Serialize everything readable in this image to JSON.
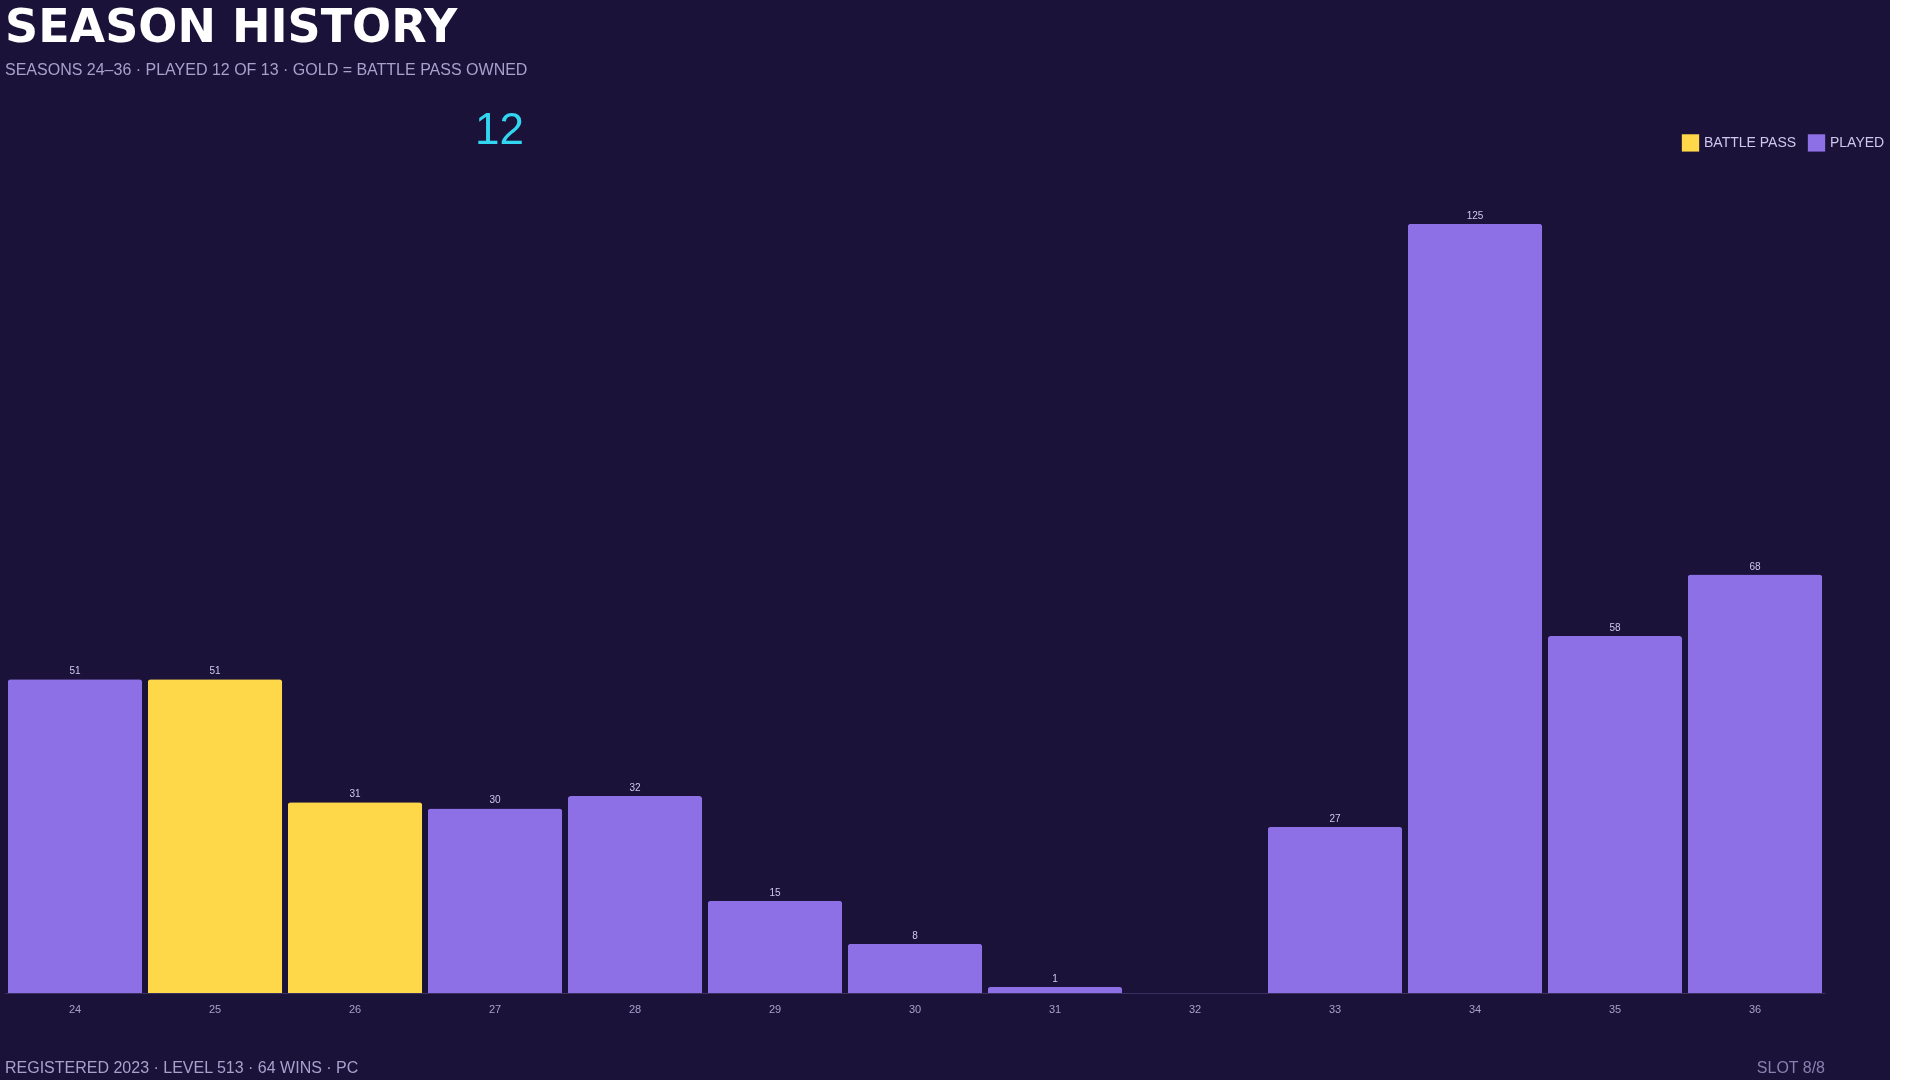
{
  "chart_data": {
    "type": "bar",
    "title": "SEASON HISTORY",
    "subtitle": "SEASONS 24–36 · PLAYED 12 OF 13 · GOLD = BATTLE PASS OWNED",
    "categories": [
      "24",
      "25",
      "26",
      "27",
      "28",
      "29",
      "30",
      "31",
      "32",
      "33",
      "34",
      "35",
      "36"
    ],
    "series": [
      {
        "name": "BATTLE PASS",
        "color": "#ffd84a",
        "values": [
          null,
          51,
          31,
          null,
          null,
          null,
          null,
          null,
          null,
          null,
          null,
          null,
          null
        ]
      },
      {
        "name": "PLAYED",
        "color": "#8e70e6",
        "values": [
          51,
          null,
          null,
          30,
          32,
          15,
          8,
          1,
          null,
          27,
          125,
          58,
          68
        ]
      }
    ],
    "data_labels": true,
    "legend": "top right",
    "grid": false,
    "annotations": [
      "12",
      "REGISTERED 2023 · LEVEL 513 · 64 WINS · PC",
      "SLOT 8/8"
    ]
  }
}
